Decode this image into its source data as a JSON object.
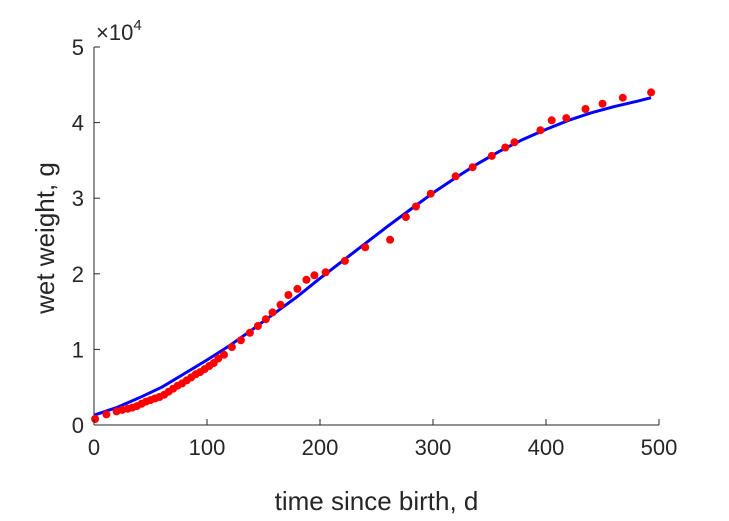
{
  "chart_data": {
    "type": "scatter",
    "xlabel": "time since birth, d",
    "ylabel": "wet weight, g",
    "xlim": [
      0,
      500
    ],
    "ylim": [
      0,
      50000
    ],
    "xticks": [
      0,
      100,
      200,
      300,
      400,
      500
    ],
    "yticks": [
      0,
      10000,
      20000,
      30000,
      40000,
      50000
    ],
    "xtick_labels": [
      "0",
      "100",
      "200",
      "300",
      "400",
      "500"
    ],
    "ytick_labels": [
      "0",
      "1",
      "2",
      "3",
      "4",
      "5"
    ],
    "y_multiplier": {
      "base": "×10",
      "exponent": "4"
    },
    "grid": false,
    "box": "left-bottom",
    "series": [
      {
        "kind": "markers",
        "color": "#ff0000",
        "points": [
          [
            1,
            800
          ],
          [
            11,
            1400
          ],
          [
            20,
            1800
          ],
          [
            25,
            2000
          ],
          [
            30,
            2150
          ],
          [
            34,
            2300
          ],
          [
            38,
            2500
          ],
          [
            42,
            2800
          ],
          [
            46,
            3100
          ],
          [
            50,
            3300
          ],
          [
            54,
            3500
          ],
          [
            58,
            3700
          ],
          [
            62,
            4000
          ],
          [
            66,
            4400
          ],
          [
            70,
            4800
          ],
          [
            74,
            5200
          ],
          [
            78,
            5500
          ],
          [
            82,
            5900
          ],
          [
            86,
            6300
          ],
          [
            90,
            6700
          ],
          [
            94,
            7000
          ],
          [
            98,
            7400
          ],
          [
            102,
            7800
          ],
          [
            106,
            8200
          ],
          [
            110,
            8800
          ],
          [
            115,
            9300
          ],
          [
            122,
            10300
          ],
          [
            130,
            11200
          ],
          [
            138,
            12200
          ],
          [
            145,
            13100
          ],
          [
            152,
            14000
          ],
          [
            158,
            14900
          ],
          [
            165,
            15900
          ],
          [
            172,
            17200
          ],
          [
            180,
            18000
          ],
          [
            188,
            19200
          ],
          [
            195,
            19800
          ],
          [
            205,
            20200
          ],
          [
            222,
            21700
          ],
          [
            240,
            23500
          ],
          [
            262,
            24500
          ],
          [
            276,
            27500
          ],
          [
            285,
            28900
          ],
          [
            298,
            30600
          ],
          [
            320,
            32900
          ],
          [
            335,
            34100
          ],
          [
            352,
            35600
          ],
          [
            364,
            36700
          ],
          [
            372,
            37400
          ],
          [
            395,
            39000
          ],
          [
            405,
            40300
          ],
          [
            418,
            40600
          ],
          [
            435,
            41800
          ],
          [
            450,
            42500
          ],
          [
            468,
            43300
          ],
          [
            493,
            44000
          ]
        ]
      },
      {
        "kind": "line",
        "color": "#0000ff",
        "points": [
          [
            0,
            1300
          ],
          [
            20,
            2300
          ],
          [
            40,
            3600
          ],
          [
            60,
            5000
          ],
          [
            80,
            6800
          ],
          [
            100,
            8600
          ],
          [
            120,
            10500
          ],
          [
            140,
            12600
          ],
          [
            160,
            14800
          ],
          [
            180,
            17000
          ],
          [
            200,
            19400
          ],
          [
            220,
            21700
          ],
          [
            240,
            24000
          ],
          [
            260,
            26300
          ],
          [
            280,
            28500
          ],
          [
            300,
            30700
          ],
          [
            320,
            32700
          ],
          [
            340,
            34600
          ],
          [
            360,
            36300
          ],
          [
            380,
            37800
          ],
          [
            400,
            39100
          ],
          [
            420,
            40300
          ],
          [
            440,
            41300
          ],
          [
            460,
            42100
          ],
          [
            480,
            42800
          ],
          [
            493,
            43300
          ]
        ]
      }
    ]
  }
}
